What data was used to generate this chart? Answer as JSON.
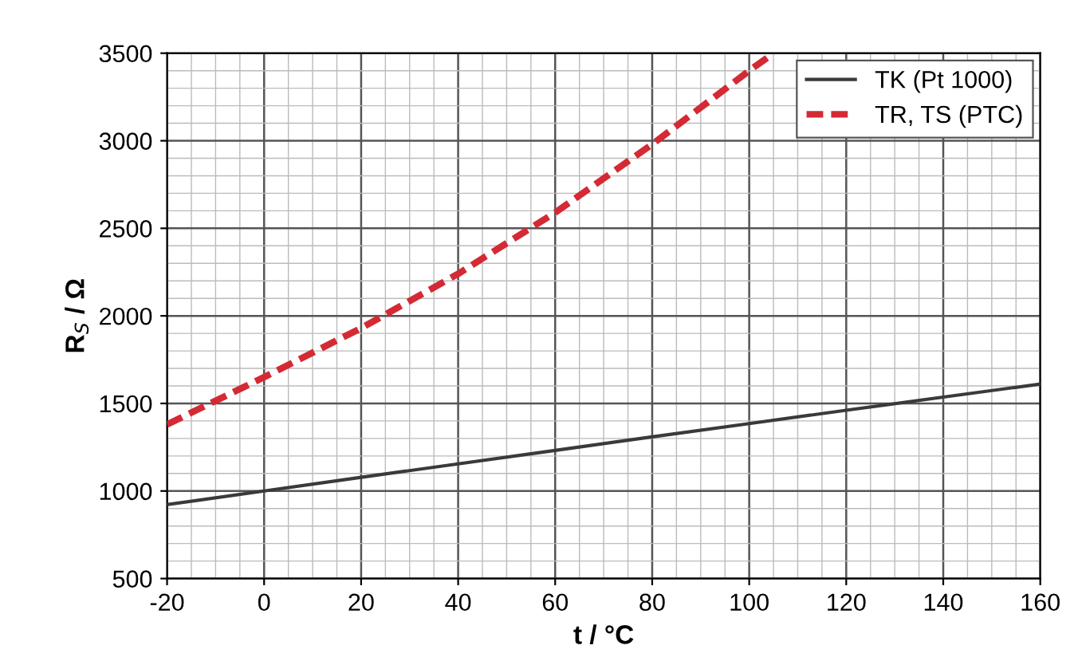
{
  "chart_data": {
    "type": "line",
    "xlabel": "t / °C",
    "ylabel": "R$_{S}$ / Ω",
    "xlim": [
      -20,
      160
    ],
    "xticks": [
      -20,
      0,
      20,
      40,
      60,
      80,
      100,
      120,
      140,
      160
    ],
    "ylim": [
      500,
      3500
    ],
    "yticks": [
      500,
      1000,
      1500,
      2000,
      2500,
      3000,
      3500
    ],
    "grid": true,
    "legend": "top right",
    "series": [
      {
        "name": "TK (Pt 1000)",
        "color": "#3a3a3a",
        "line_style": "solid",
        "x": [
          -20,
          0,
          20,
          40,
          60,
          80,
          100,
          120,
          140,
          160
        ],
        "values": [
          922,
          1000,
          1078,
          1155,
          1232,
          1309,
          1385,
          1461,
          1536,
          1611
        ]
      },
      {
        "name": "TR, TS (PTC)",
        "color": "#d42a34",
        "line_style": "dashed",
        "x": [
          -20,
          0,
          20,
          40,
          60,
          80,
          100,
          105
        ],
        "values": [
          1380,
          1650,
          1930,
          2240,
          2590,
          2980,
          3400,
          3500
        ]
      }
    ]
  }
}
